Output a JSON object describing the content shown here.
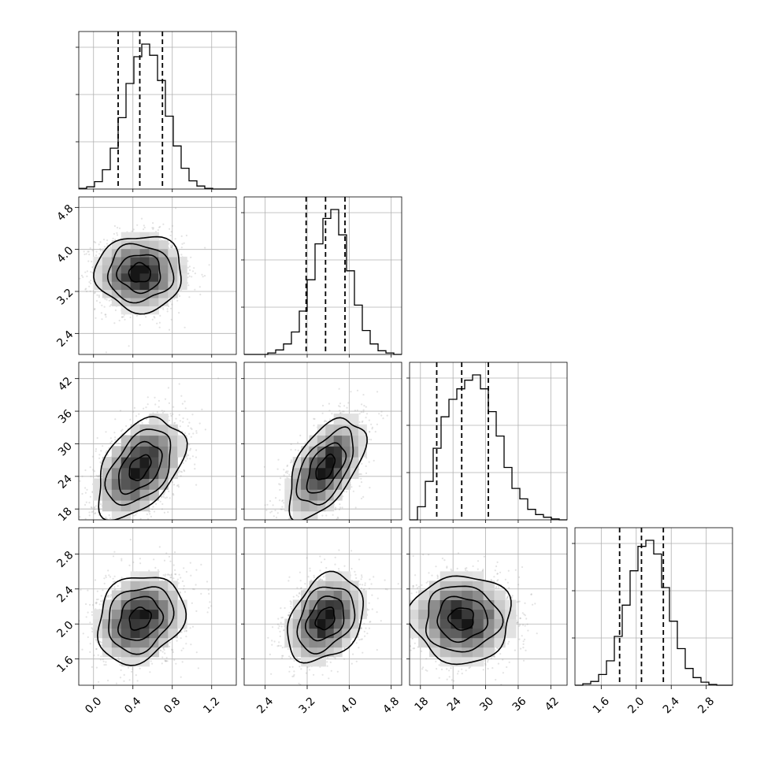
{
  "chart_data": {
    "type": "corner",
    "grid": true,
    "parameters": [
      {
        "index": 0,
        "mean": 0.47,
        "std": 0.22,
        "q16": 0.25,
        "q50": 0.47,
        "q84": 0.7,
        "range": [
          -0.15,
          1.45
        ]
      },
      {
        "index": 1,
        "mean": 3.55,
        "std": 0.36,
        "q16": 3.18,
        "q50": 3.55,
        "q84": 3.92,
        "range": [
          2.0,
          5.0
        ]
      },
      {
        "index": 2,
        "mean": 25.6,
        "std": 4.6,
        "q16": 21.0,
        "q50": 25.6,
        "q84": 30.5,
        "range": [
          16.0,
          45.0
        ]
      },
      {
        "index": 3,
        "mean": 2.06,
        "std": 0.25,
        "q16": 1.81,
        "q50": 2.06,
        "q84": 2.31,
        "range": [
          1.3,
          3.1
        ]
      }
    ],
    "correlations": [
      {
        "pair": [
          1,
          0
        ],
        "rho": 0.0
      },
      {
        "pair": [
          2,
          0
        ],
        "rho": 0.45
      },
      {
        "pair": [
          2,
          1
        ],
        "rho": 0.55
      },
      {
        "pair": [
          3,
          0
        ],
        "rho": 0.2
      },
      {
        "pair": [
          3,
          1
        ],
        "rho": 0.3
      },
      {
        "pair": [
          3,
          2
        ],
        "rho": 0.0
      }
    ],
    "x_ticks": [
      [
        "0.0",
        "0.4",
        "0.8",
        "1.2"
      ],
      [
        "2.4",
        "3.2",
        "4.0",
        "4.8"
      ],
      [
        "18",
        "24",
        "30",
        "36",
        "42"
      ],
      [
        "1.6",
        "2.0",
        "2.4",
        "2.8"
      ]
    ],
    "y_ticks": {
      "row1": [
        "4.8",
        "4.0",
        "3.2",
        "2.4"
      ],
      "row2": [
        "42",
        "36",
        "30",
        "24",
        "18"
      ],
      "row3": [
        "2.8",
        "2.4",
        "2.0",
        "1.6"
      ]
    },
    "histograms": {
      "bins": 20,
      "counts": [
        [
          1,
          3,
          10,
          26,
          55,
          96,
          142,
          178,
          195,
          180,
          146,
          98,
          58,
          28,
          11,
          4,
          1,
          0,
          0,
          0
        ],
        [
          0,
          0,
          0,
          2,
          6,
          14,
          30,
          58,
          100,
          148,
          182,
          194,
          160,
          112,
          66,
          32,
          14,
          5,
          2,
          0
        ],
        [
          0,
          15,
          44,
          82,
          118,
          138,
          150,
          160,
          166,
          150,
          124,
          96,
          60,
          36,
          24,
          12,
          6,
          3,
          1,
          0
        ],
        [
          0,
          2,
          5,
          14,
          32,
          64,
          105,
          150,
          182,
          190,
          172,
          128,
          84,
          48,
          22,
          10,
          4,
          1,
          0,
          0
        ]
      ]
    },
    "scatter_samples": 1800,
    "contour_levels": [
      0.118,
      0.393,
      0.675,
      0.865
    ]
  }
}
